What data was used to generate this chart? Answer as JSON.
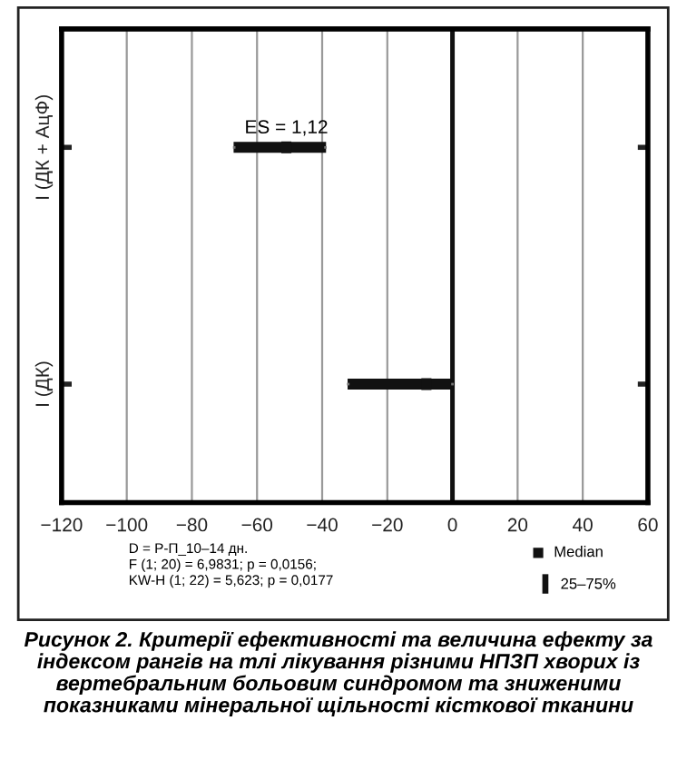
{
  "chart_data": {
    "type": "box",
    "orientation": "horizontal",
    "title": "Рисунок 2. Критерії ефективності та величина ефекту за індексом рангів на тлі лікування різними НПЗП хворих із вертебральним больовим синдромом та зниженими показниками мінеральної щільності кісткової тканини",
    "categories": [
      "I (ДК + АцФ)",
      "I (ДК)"
    ],
    "series": [
      {
        "name": "25–75%",
        "color": "#111111",
        "boxes": [
          {
            "low": -67,
            "q1": -67,
            "median": -51,
            "q3": -39,
            "high": -39
          },
          {
            "low": -32,
            "q1": -32,
            "median": -8,
            "q3": 0,
            "high": 0
          }
        ]
      }
    ],
    "xlim": [
      -120,
      60
    ],
    "xticks": [
      {
        "value": -120,
        "label": "−120"
      },
      {
        "value": -100,
        "label": "−100"
      },
      {
        "value": -80,
        "label": "−80"
      },
      {
        "value": -60,
        "label": "−60"
      },
      {
        "value": -40,
        "label": "−40"
      },
      {
        "value": -20,
        "label": "−20"
      },
      0,
      20,
      40,
      60
    ],
    "grid": "x",
    "ref_lines": [
      {
        "axis": "x",
        "value": 0,
        "color": "#111111"
      }
    ],
    "legend": "bottom right",
    "annotations": [
      "ES = 1,12",
      "D = Р-П_10–14 дн.\nF (1; 20) = 6,9831; p = 0,0156;\nKW-H (1; 22) = 5,623; p = 0,0177",
      "Median"
    ]
  }
}
